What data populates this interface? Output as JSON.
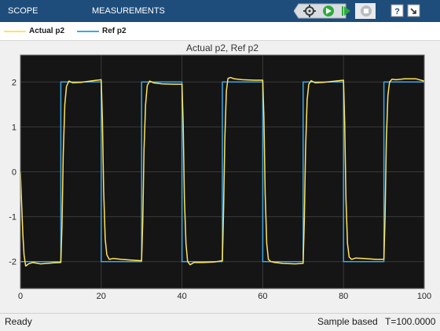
{
  "toolbar": {
    "tabs": [
      "SCOPE",
      "MEASUREMENTS"
    ],
    "icons": [
      "scope-settings-icon",
      "run-icon",
      "step-forward-icon",
      "stop-icon",
      "help-icon",
      "undock-icon"
    ]
  },
  "legend": {
    "entries": [
      {
        "label": "Actual p2",
        "color": "#ffe55a"
      },
      {
        "label": "Ref p2",
        "color": "#3da7e6"
      }
    ]
  },
  "colors": {
    "toolbar_bg": "#1e4d7b",
    "plot_bg": "#151515",
    "grid": "#3a3a3a",
    "actual": "#ffe55a",
    "reference": "#3da7e6"
  },
  "status": {
    "left": "Ready",
    "mode": "Sample based",
    "time": "T=100.0000"
  },
  "chart_data": {
    "type": "line",
    "title": "Actual p2, Ref p2",
    "xlabel": "",
    "ylabel": "",
    "xlim": [
      0,
      100
    ],
    "ylim": [
      -2.6,
      2.6
    ],
    "xticks": [
      0,
      20,
      40,
      60,
      80,
      100
    ],
    "yticks": [
      -2,
      -1,
      0,
      1,
      2
    ],
    "grid": true,
    "series": [
      {
        "name": "Ref p2",
        "x": [
          0,
          10,
          10,
          20,
          20,
          30,
          30,
          40,
          40,
          50,
          50,
          60,
          60,
          70,
          70,
          80,
          80,
          90,
          90,
          100
        ],
        "y": [
          -2,
          -2,
          2,
          2,
          -2,
          -2,
          2,
          2,
          -2,
          -2,
          2,
          2,
          -2,
          -2,
          2,
          2,
          -2,
          -2,
          2,
          2
        ]
      },
      {
        "name": "Actual p2",
        "x": [
          0,
          0.3,
          0.6,
          0.9,
          1.3,
          2.0,
          3.0,
          5.0,
          8.0,
          10.0,
          10.3,
          10.6,
          11.0,
          11.4,
          12.0,
          13.0,
          15.0,
          18.0,
          20.0,
          20.3,
          20.6,
          21.0,
          21.4,
          22.0,
          23.0,
          25.0,
          28.0,
          30.0,
          30.3,
          30.6,
          31.0,
          31.4,
          32.0,
          33.0,
          35.0,
          38.0,
          40.0,
          40.3,
          40.6,
          41.0,
          41.4,
          42.0,
          43.0,
          45.0,
          48.0,
          50.0,
          50.3,
          50.6,
          51.0,
          51.4,
          52.0,
          53.0,
          55.0,
          58.0,
          60.0,
          60.3,
          60.6,
          61.0,
          61.4,
          62.0,
          63.0,
          65.0,
          68.0,
          70.0,
          70.3,
          70.6,
          71.0,
          71.4,
          72.0,
          73.0,
          75.0,
          78.0,
          80.0,
          80.3,
          80.6,
          81.0,
          81.4,
          82.0,
          83.0,
          85.0,
          88.0,
          90.0,
          90.3,
          90.6,
          91.0,
          91.4,
          92.0,
          93.0,
          95.0,
          98.0,
          100.0
        ],
        "y": [
          0.0,
          -0.7,
          -1.4,
          -1.85,
          -2.1,
          -2.05,
          -2.02,
          -2.05,
          -2.03,
          -2.02,
          -1.2,
          0.4,
          1.5,
          1.9,
          2.02,
          1.98,
          1.99,
          2.03,
          2.05,
          1.2,
          -0.4,
          -1.5,
          -1.85,
          -1.95,
          -1.93,
          -1.95,
          -1.97,
          -1.98,
          -1.1,
          0.5,
          1.5,
          1.92,
          2.02,
          1.98,
          1.96,
          1.95,
          1.95,
          1.1,
          -0.6,
          -1.6,
          -2.0,
          -2.07,
          -2.02,
          -2.02,
          -2.01,
          -1.98,
          -0.9,
          0.7,
          1.8,
          2.08,
          2.1,
          2.07,
          2.05,
          2.04,
          2.04,
          1.2,
          -0.5,
          -1.6,
          -1.95,
          -2.0,
          -2.02,
          -2.04,
          -2.05,
          -2.04,
          -1.1,
          0.5,
          1.6,
          1.95,
          2.03,
          1.98,
          1.99,
          2.02,
          2.04,
          1.1,
          -0.6,
          -1.6,
          -1.9,
          -1.95,
          -1.92,
          -1.93,
          -1.95,
          -1.95,
          -1.0,
          0.7,
          1.7,
          2.0,
          2.06,
          2.05,
          2.07,
          2.07,
          2.02
        ]
      }
    ]
  }
}
